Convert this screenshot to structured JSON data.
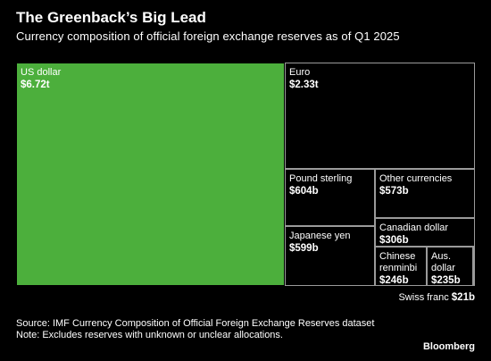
{
  "header": {
    "title": "The Greenback’s Big Lead",
    "subtitle": "Currency composition of official foreign exchange reserves as of Q1 2025"
  },
  "colors": {
    "highlight": "#4caf3c",
    "background": "#000000",
    "tile_border": "#9a9a9a"
  },
  "chart_data": {
    "type": "treemap",
    "title": "The Greenback’s Big Lead",
    "subtitle": "Currency composition of official foreign exchange reserves as of Q1 2025",
    "unit": "USD",
    "items": [
      {
        "label": "US dollar",
        "display": "$6.72t",
        "value": 6720,
        "highlight": true
      },
      {
        "label": "Euro",
        "display": "$2.33t",
        "value": 2330
      },
      {
        "label": "Pound sterling",
        "display": "$604b",
        "value": 604
      },
      {
        "label": "Other currencies",
        "display": "$573b",
        "value": 573
      },
      {
        "label": "Japanese yen",
        "display": "$599b",
        "value": 599
      },
      {
        "label": "Canadian dollar",
        "display": "$306b",
        "value": 306
      },
      {
        "label": "Chinese\nrenminbi",
        "display": "$246b",
        "value": 246
      },
      {
        "label": "Aus.\ndollar",
        "display": "$235b",
        "value": 235
      },
      {
        "label": "Swiss franc",
        "display": "$21b",
        "value": 21
      }
    ]
  },
  "footer": {
    "source": "Source: IMF Currency Composition of Official Foreign Exchange Reserves dataset",
    "note": "Note: Excludes reserves with unknown or unclear allocations.",
    "brand": "Bloomberg"
  }
}
